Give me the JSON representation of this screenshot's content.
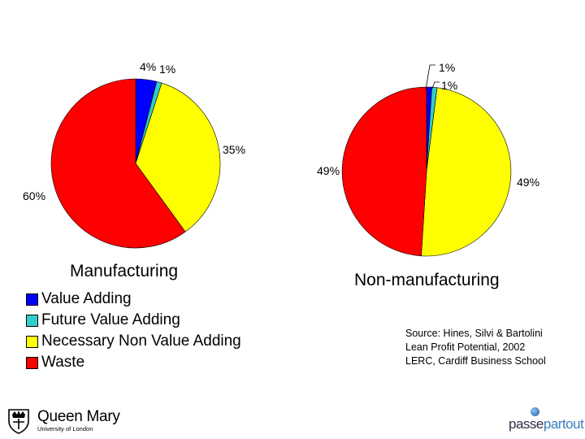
{
  "chart_data": [
    {
      "type": "pie",
      "title": "Manufacturing",
      "labels": [
        "Value Adding",
        "Future Value Adding",
        "Necessary Non Value Adding",
        "Waste"
      ],
      "values": [
        4,
        1,
        35,
        60
      ],
      "data_labels": [
        "4%",
        "1%",
        "35%",
        "60%"
      ]
    },
    {
      "type": "pie",
      "title": "Non-manufacturing",
      "labels": [
        "Value Adding",
        "Future Value Adding",
        "Necessary Non Value Adding",
        "Waste"
      ],
      "values": [
        1,
        1,
        49,
        49
      ],
      "data_labels": [
        "1%",
        "1%",
        "49%",
        "49%"
      ]
    }
  ],
  "legend": [
    {
      "label": "Value Adding",
      "color": "#0000ff"
    },
    {
      "label": "Future Value Adding",
      "color": "#33cccc"
    },
    {
      "label": "Necessary Non Value Adding",
      "color": "#ffff00"
    },
    {
      "label": "Waste",
      "color": "#ff0000"
    }
  ],
  "source": {
    "line1": "Source: Hines, Silvi & Bartolini",
    "line2": "Lean Profit Potential, 2002",
    "line3": "LERC, Cardiff Business School"
  },
  "logos": {
    "qm_name": "Queen Mary",
    "qm_sub": "University of London",
    "pp_part1": "passe",
    "pp_part2": "partout"
  }
}
